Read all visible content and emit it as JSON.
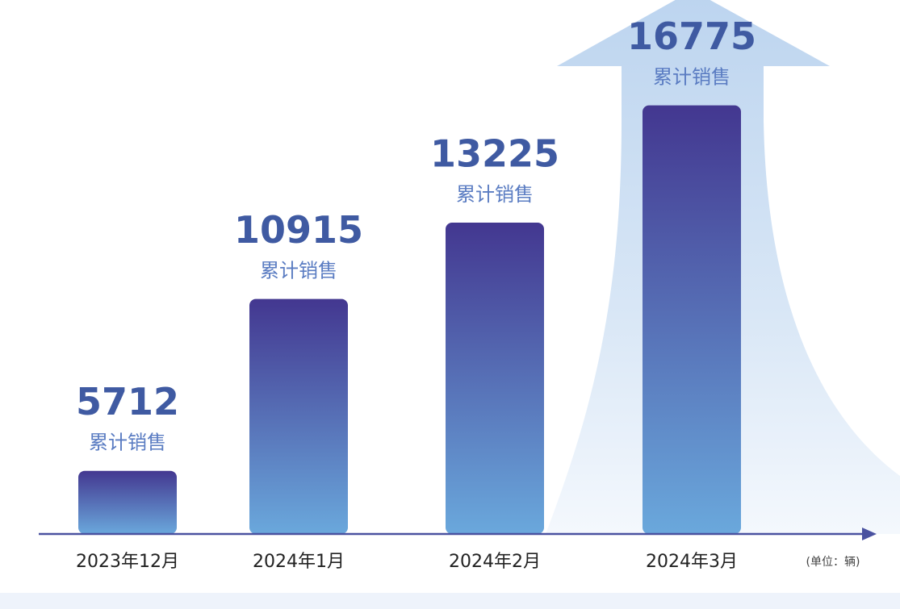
{
  "chart_data": {
    "type": "bar",
    "categories": [
      "2023年12月",
      "2024年1月",
      "2024年2月",
      "2024年3月"
    ],
    "values": [
      5712,
      10915,
      13225,
      16775
    ],
    "annotation": "累计销售",
    "unit_note": "(单位：辆)",
    "ylim": [
      3800,
      18500
    ]
  }
}
